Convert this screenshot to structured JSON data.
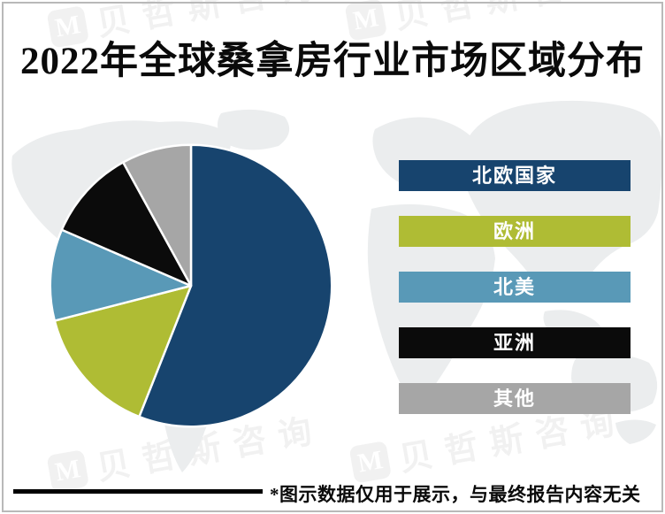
{
  "page": {
    "background_color": "#ffffff",
    "frame_border_color": "#b9b9b9"
  },
  "header": {
    "title": "2022年全球桑拿房行业市场区域分布"
  },
  "watermark": {
    "text": "贝哲斯咨询",
    "logo": "envelope-m-logo",
    "logo_glyph": "M"
  },
  "footer": {
    "note": "*图示数据仅用于展示，与最终报告内容无关"
  },
  "chart_data": {
    "type": "pie",
    "title": "2022年全球桑拿房行业市场区域分布",
    "categories": [
      "北欧国家",
      "欧洲",
      "北美",
      "亚洲",
      "其他"
    ],
    "values": [
      56,
      15,
      10.5,
      10.5,
      8
    ],
    "unit": "%",
    "colors": [
      "#17446e",
      "#afbc34",
      "#5999b7",
      "#0b0b0b",
      "#a6a6a6"
    ],
    "slice_stroke_color": "#ffffff",
    "start_angle_deg": 0,
    "direction": "clockwise",
    "legend_position": "right",
    "background_map_color": "#ebedee"
  }
}
